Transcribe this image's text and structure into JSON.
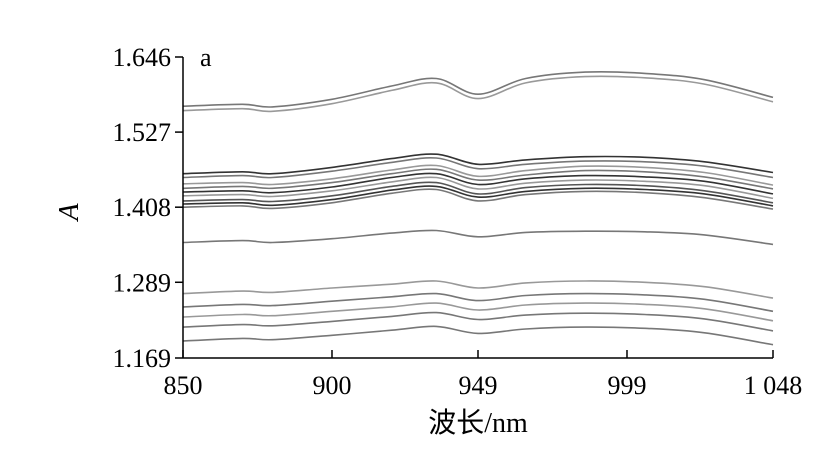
{
  "chart_data": {
    "type": "line",
    "panel_label": "a",
    "xlabel": "波长/nm",
    "ylabel": "A",
    "xlim": [
      850,
      1048
    ],
    "ylim": [
      1.169,
      1.646
    ],
    "x_ticks": [
      {
        "value": 850,
        "label": "850"
      },
      {
        "value": 900,
        "label": "900"
      },
      {
        "value": 949,
        "label": "949"
      },
      {
        "value": 999,
        "label": "999"
      },
      {
        "value": 1048,
        "label": "1 048"
      }
    ],
    "y_ticks": [
      {
        "value": 1.646,
        "label": "1.646"
      },
      {
        "value": 1.527,
        "label": "1.527"
      },
      {
        "value": 1.408,
        "label": "1.408"
      },
      {
        "value": 1.289,
        "label": "1.289"
      },
      {
        "value": 1.169,
        "label": "1.169"
      }
    ],
    "x": [
      850,
      870,
      880,
      900,
      920,
      935,
      949,
      965,
      985,
      1005,
      1025,
      1048
    ],
    "series": [
      {
        "color": "#777777",
        "values": [
          1.568,
          1.571,
          1.567,
          1.579,
          1.6,
          1.612,
          1.587,
          1.612,
          1.622,
          1.62,
          1.61,
          1.582
        ]
      },
      {
        "color": "#999999",
        "values": [
          1.561,
          1.564,
          1.56,
          1.572,
          1.593,
          1.605,
          1.58,
          1.605,
          1.615,
          1.613,
          1.603,
          1.575
        ]
      },
      {
        "color": "#333333",
        "values": [
          1.461,
          1.464,
          1.461,
          1.471,
          1.485,
          1.492,
          1.476,
          1.483,
          1.488,
          1.487,
          1.48,
          1.463
        ]
      },
      {
        "color": "#777777",
        "values": [
          1.455,
          1.458,
          1.455,
          1.465,
          1.479,
          1.486,
          1.469,
          1.476,
          1.481,
          1.48,
          1.473,
          1.455
        ]
      },
      {
        "color": "#999999",
        "values": [
          1.445,
          1.447,
          1.444,
          1.453,
          1.467,
          1.474,
          1.457,
          1.466,
          1.473,
          1.471,
          1.463,
          1.443
        ]
      },
      {
        "color": "#777777",
        "values": [
          1.438,
          1.441,
          1.438,
          1.447,
          1.461,
          1.468,
          1.451,
          1.459,
          1.466,
          1.464,
          1.456,
          1.437
        ]
      },
      {
        "color": "#333333",
        "values": [
          1.432,
          1.434,
          1.431,
          1.44,
          1.455,
          1.461,
          1.444,
          1.453,
          1.458,
          1.456,
          1.449,
          1.429
        ]
      },
      {
        "color": "#999999",
        "values": [
          1.426,
          1.428,
          1.425,
          1.434,
          1.448,
          1.455,
          1.437,
          1.446,
          1.451,
          1.449,
          1.442,
          1.422
        ]
      },
      {
        "color": "#555555",
        "values": [
          1.418,
          1.42,
          1.417,
          1.426,
          1.441,
          1.447,
          1.429,
          1.439,
          1.444,
          1.442,
          1.434,
          1.415
        ]
      },
      {
        "color": "#333333",
        "values": [
          1.413,
          1.415,
          1.411,
          1.42,
          1.435,
          1.441,
          1.424,
          1.433,
          1.438,
          1.436,
          1.429,
          1.41
        ]
      },
      {
        "color": "#777777",
        "values": [
          1.408,
          1.41,
          1.406,
          1.415,
          1.43,
          1.436,
          1.418,
          1.428,
          1.433,
          1.431,
          1.423,
          1.405
        ]
      },
      {
        "color": "#777777",
        "values": [
          1.352,
          1.355,
          1.352,
          1.358,
          1.367,
          1.371,
          1.361,
          1.368,
          1.37,
          1.369,
          1.364,
          1.349
        ]
      },
      {
        "color": "#999999",
        "values": [
          1.271,
          1.275,
          1.273,
          1.28,
          1.286,
          1.291,
          1.28,
          1.288,
          1.291,
          1.289,
          1.282,
          1.264
        ]
      },
      {
        "color": "#777777",
        "values": [
          1.25,
          1.254,
          1.252,
          1.259,
          1.266,
          1.271,
          1.26,
          1.268,
          1.271,
          1.269,
          1.262,
          1.243
        ]
      },
      {
        "color": "#999999",
        "values": [
          1.234,
          1.238,
          1.236,
          1.243,
          1.25,
          1.256,
          1.245,
          1.253,
          1.256,
          1.254,
          1.247,
          1.228
        ]
      },
      {
        "color": "#777777",
        "values": [
          1.218,
          1.222,
          1.22,
          1.227,
          1.235,
          1.241,
          1.23,
          1.237,
          1.24,
          1.238,
          1.231,
          1.212
        ]
      },
      {
        "color": "#777777",
        "values": [
          1.196,
          1.2,
          1.198,
          1.205,
          1.213,
          1.219,
          1.208,
          1.215,
          1.218,
          1.216,
          1.209,
          1.19
        ]
      }
    ]
  }
}
